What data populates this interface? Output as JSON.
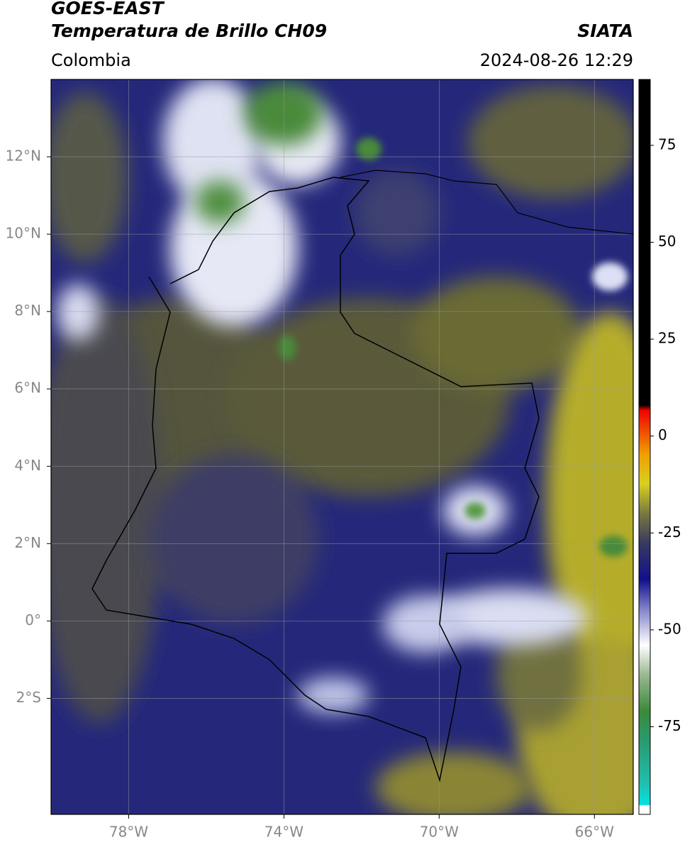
{
  "header": {
    "title": "GOES-EAST",
    "subtitle": "Temperatura de Brillo CH09",
    "source": "SIATA",
    "region": "Colombia",
    "datetime": "2024-08-26 12:29"
  },
  "map": {
    "xlim": [
      -80,
      -65
    ],
    "ylim": [
      -5,
      14
    ],
    "xticks": [
      {
        "value": -78,
        "label": "78°W"
      },
      {
        "value": -74,
        "label": "74°W"
      },
      {
        "value": -70,
        "label": "70°W"
      },
      {
        "value": -66,
        "label": "66°W"
      }
    ],
    "yticks": [
      {
        "value": 12,
        "label": "12°N"
      },
      {
        "value": 10,
        "label": "10°N"
      },
      {
        "value": 8,
        "label": "8°N"
      },
      {
        "value": 6,
        "label": "6°N"
      },
      {
        "value": 4,
        "label": "4°N"
      },
      {
        "value": 2,
        "label": "2°N"
      },
      {
        "value": 0,
        "label": "0°"
      },
      {
        "value": -2,
        "label": "2°S"
      }
    ],
    "grid": true
  },
  "colorbar": {
    "lim": [
      -97.6,
      92
    ],
    "ticks": [
      75,
      50,
      25,
      0,
      -25,
      -50,
      -75
    ]
  }
}
